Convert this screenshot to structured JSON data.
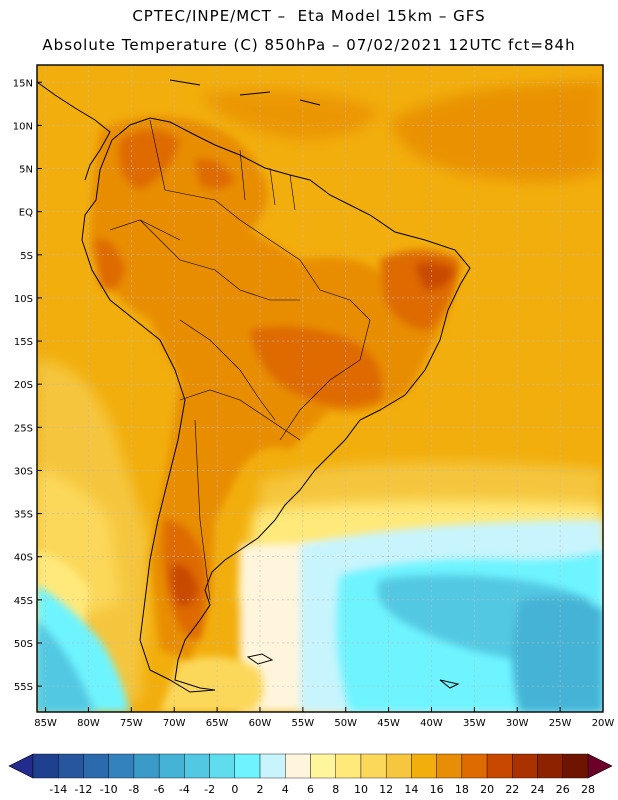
{
  "header": {
    "line1": "CPTEC/INPE/MCT –  Eta Model 15km – GFS",
    "line2": "Absolute Temperature (C) 850hPa – 07/02/2021 12UTC fct=84h"
  },
  "map": {
    "lat_labels": [
      "15N",
      "10N",
      "5N",
      "EQ",
      "5S",
      "10S",
      "15S",
      "20S",
      "25S",
      "30S",
      "35S",
      "40S",
      "45S",
      "50S",
      "55S"
    ],
    "lat_values": [
      15,
      10,
      5,
      0,
      -5,
      -10,
      -15,
      -20,
      -25,
      -30,
      -35,
      -40,
      -45,
      -50,
      -55
    ],
    "lon_labels": [
      "85W",
      "80W",
      "75W",
      "70W",
      "65W",
      "60W",
      "55W",
      "50W",
      "45W",
      "40W",
      "35W",
      "30W",
      "25W",
      "20W"
    ],
    "lon_values": [
      -85,
      -80,
      -75,
      -70,
      -65,
      -60,
      -55,
      -50,
      -45,
      -40,
      -35,
      -30,
      -25,
      -20
    ],
    "extent": {
      "lon_min": -86,
      "lon_max": -20,
      "lat_min": -58,
      "lat_max": 17
    },
    "background_color": "#f2ae0c"
  },
  "colorbar": {
    "labels": [
      "-14",
      "-12",
      "-10",
      "-8",
      "-6",
      "-4",
      "-2",
      "0",
      "2",
      "4",
      "6",
      "8",
      "10",
      "12",
      "14",
      "16",
      "18",
      "20",
      "22",
      "24",
      "26",
      "28"
    ],
    "colors": [
      "#1f3f8f",
      "#27559e",
      "#2c6aae",
      "#3482bd",
      "#3a9bc9",
      "#45b3d6",
      "#52c8e2",
      "#5fdcee",
      "#6ef4ff",
      "#c8f4fd",
      "#fff5dc",
      "#fff59d",
      "#ffe97a",
      "#fcd85a",
      "#f5c63e",
      "#f2ae0c",
      "#e88d06",
      "#de6a02",
      "#c84800",
      "#a93200",
      "#8c2200",
      "#6e1400"
    ],
    "end_left": "#232b8c",
    "end_right": "#6d002a"
  }
}
